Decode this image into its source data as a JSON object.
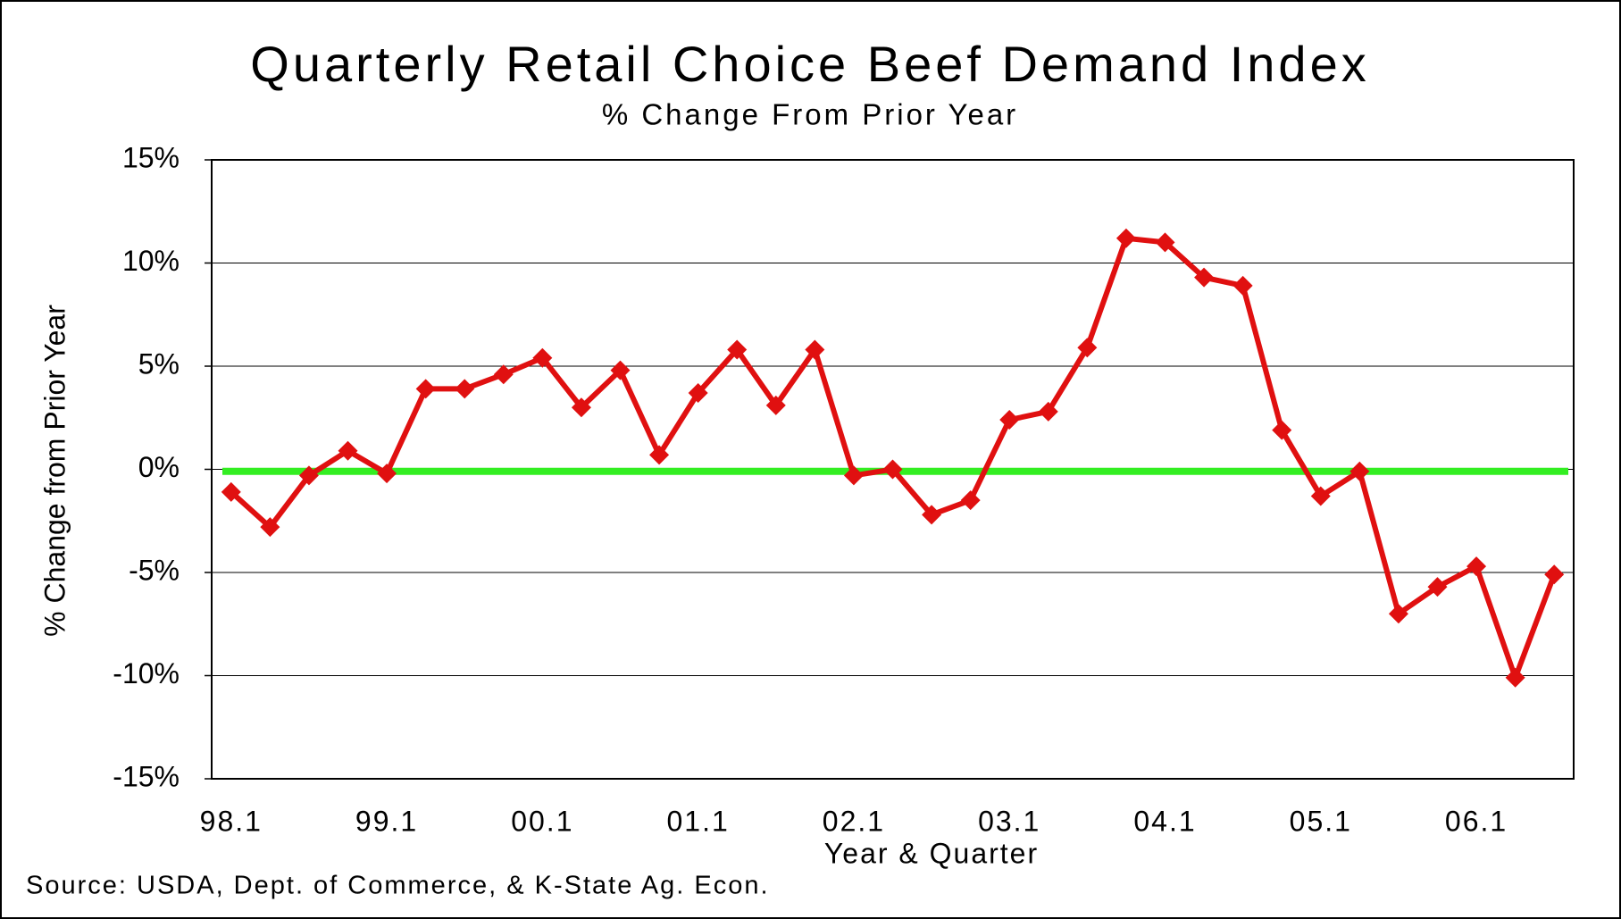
{
  "chart_data": {
    "type": "line",
    "title": "Quarterly Retail Choice Beef Demand Index",
    "subtitle": "% Change From Prior Year",
    "x_label": "Year & Quarter",
    "y_label": "% Change from Prior Year",
    "source": "Source: USDA, Dept. of Commerce, & K-State Ag. Econ.",
    "categories": [
      "98.1",
      null,
      null,
      null,
      "99.1",
      null,
      null,
      null,
      "00.1",
      null,
      null,
      null,
      "01.1",
      null,
      null,
      null,
      "02.1",
      null,
      null,
      null,
      "03.1",
      null,
      null,
      null,
      "04.1",
      null,
      null,
      null,
      "05.1",
      null,
      null,
      null,
      "06.1",
      null,
      null
    ],
    "series": [
      {
        "name": "Demand Index",
        "color": "#e01010",
        "values": [
          -1.1,
          -2.8,
          -0.3,
          0.9,
          -0.2,
          3.9,
          3.9,
          4.6,
          5.4,
          3.0,
          4.8,
          0.7,
          3.7,
          5.8,
          3.1,
          5.8,
          -0.3,
          0.0,
          -2.2,
          -1.5,
          2.4,
          2.8,
          5.9,
          11.2,
          11.0,
          9.3,
          8.9,
          1.9,
          -1.3,
          -0.1,
          -7.0,
          -5.7,
          -4.7,
          -10.1,
          -5.1
        ]
      }
    ],
    "reference_line": {
      "value": -0.1,
      "color": "#33ee22"
    },
    "ylim": [
      -15,
      15
    ],
    "yticks": [
      {
        "value": -15,
        "label": "-15%"
      },
      {
        "value": -10,
        "label": "-10%"
      },
      {
        "value": -5,
        "label": "-5%"
      },
      {
        "value": 0,
        "label": "0%"
      },
      {
        "value": 5,
        "label": "5%"
      },
      {
        "value": 10,
        "label": "10%"
      },
      {
        "value": 15,
        "label": "15%"
      }
    ],
    "grid": true
  }
}
